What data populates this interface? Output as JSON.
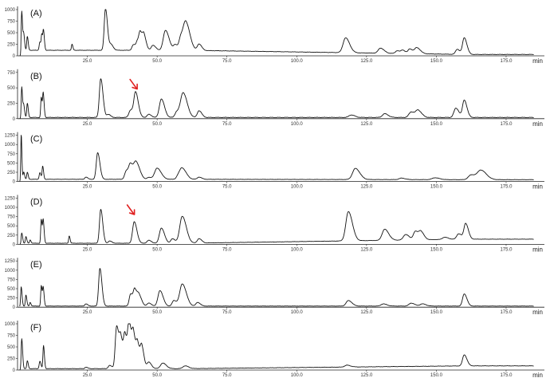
{
  "chart_data": [
    {
      "type": "line",
      "panel_label": "(A)",
      "xlabel": "min",
      "xlim": [
        0,
        185
      ],
      "ylim": [
        0,
        1000
      ],
      "xticks": [
        "25.0",
        "50.0",
        "75.0",
        "100.0",
        "125.0",
        "150.0",
        "175.0"
      ],
      "yticks": [
        "0",
        "250",
        "500",
        "750",
        "1000"
      ],
      "baseline": 120,
      "tail_baseline": 30,
      "peaks": [
        [
          1.5,
          850,
          0.18
        ],
        [
          2.2,
          350,
          0.2
        ],
        [
          3.5,
          300,
          0.2
        ],
        [
          8.0,
          180,
          0.25
        ],
        [
          8.7,
          320,
          0.2
        ],
        [
          9.3,
          400,
          0.2
        ],
        [
          19.5,
          130,
          0.2
        ],
        [
          31.5,
          900,
          0.45
        ],
        [
          33.5,
          120,
          0.5
        ],
        [
          41.5,
          120,
          0.5
        ],
        [
          43.0,
          180,
          0.5
        ],
        [
          44.0,
          330,
          0.5
        ],
        [
          45.3,
          290,
          0.5
        ],
        [
          48.5,
          110,
          0.6
        ],
        [
          53.0,
          430,
          0.8
        ],
        [
          56.5,
          120,
          0.6
        ],
        [
          58.5,
          260,
          0.6
        ],
        [
          60.3,
          590,
          0.9
        ],
        [
          65.0,
          140,
          0.6
        ],
        [
          117.5,
          320,
          0.9
        ],
        [
          130.0,
          110,
          0.8
        ],
        [
          136.0,
          60,
          0.6
        ],
        [
          138.0,
          70,
          0.6
        ],
        [
          140.5,
          100,
          0.6
        ],
        [
          143.0,
          130,
          0.8
        ],
        [
          157.5,
          110,
          0.6
        ],
        [
          160.0,
          360,
          0.6
        ]
      ]
    },
    {
      "type": "line",
      "panel_label": "(B)",
      "xlabel": "min",
      "xlim": [
        0,
        185
      ],
      "ylim": [
        0,
        750
      ],
      "xticks": [
        "25.0",
        "50.0",
        "75.0",
        "100.0",
        "125.0",
        "150.0",
        "175.0"
      ],
      "yticks": [
        "0",
        "250",
        "500",
        "750"
      ],
      "baseline": 20,
      "tail_baseline": 20,
      "arrow_at": [
        42,
        520
      ],
      "peaks": [
        [
          1.5,
          500,
          0.18
        ],
        [
          2.2,
          200,
          0.2
        ],
        [
          3.5,
          230,
          0.2
        ],
        [
          8.5,
          330,
          0.2
        ],
        [
          9.2,
          380,
          0.2
        ],
        [
          29.8,
          630,
          0.5
        ],
        [
          32.5,
          50,
          0.5
        ],
        [
          40.5,
          120,
          0.6
        ],
        [
          42.3,
          400,
          0.6
        ],
        [
          47.0,
          50,
          0.6
        ],
        [
          51.5,
          300,
          0.7
        ],
        [
          57.0,
          90,
          0.6
        ],
        [
          59.3,
          400,
          0.9
        ],
        [
          65.0,
          110,
          0.6
        ],
        [
          119.5,
          40,
          0.8
        ],
        [
          131.5,
          60,
          0.8
        ],
        [
          141.0,
          90,
          0.8
        ],
        [
          143.5,
          110,
          0.8
        ],
        [
          157.0,
          150,
          0.7
        ],
        [
          160.0,
          280,
          0.6
        ]
      ]
    },
    {
      "type": "line",
      "panel_label": "(C)",
      "xlabel": "min",
      "xlim": [
        0,
        185
      ],
      "ylim": [
        0,
        1250
      ],
      "xticks": [
        "25.0",
        "50.0",
        "75.0",
        "100.0",
        "125.0",
        "150.0",
        "175.0"
      ],
      "yticks": [
        "0",
        "250",
        "500",
        "750",
        "1000",
        "1250"
      ],
      "baseline": 60,
      "tail_baseline": 50,
      "peaks": [
        [
          1.3,
          1250,
          0.15
        ],
        [
          2.2,
          200,
          0.2
        ],
        [
          3.5,
          190,
          0.2
        ],
        [
          8.0,
          180,
          0.25
        ],
        [
          9.0,
          350,
          0.2
        ],
        [
          24.5,
          60,
          0.4
        ],
        [
          28.7,
          720,
          0.5
        ],
        [
          39.0,
          230,
          0.6
        ],
        [
          40.5,
          360,
          0.6
        ],
        [
          42.5,
          450,
          0.8
        ],
        [
          47.0,
          50,
          0.6
        ],
        [
          50.0,
          300,
          0.9
        ],
        [
          57.5,
          80,
          0.6
        ],
        [
          59.0,
          290,
          0.9
        ],
        [
          65.0,
          60,
          0.6
        ],
        [
          121.0,
          300,
          1.0
        ],
        [
          137.5,
          40,
          0.8
        ],
        [
          149.5,
          50,
          1.0
        ],
        [
          162.5,
          130,
          1.0
        ],
        [
          166.0,
          250,
          1.2
        ]
      ]
    },
    {
      "type": "line",
      "panel_label": "(D)",
      "xlabel": "min",
      "xlim": [
        0,
        185
      ],
      "ylim": [
        0,
        1250
      ],
      "xticks": [
        "25.0",
        "50.0",
        "75.0",
        "100.0",
        "125.0",
        "150.0",
        "175.0"
      ],
      "yticks": [
        "0",
        "250",
        "500",
        "750",
        "1000",
        "1250"
      ],
      "baseline": 30,
      "tail_baseline": 140,
      "arrow_at": [
        41,
        870
      ],
      "peaks": [
        [
          1.5,
          280,
          0.2
        ],
        [
          3.0,
          180,
          0.2
        ],
        [
          4.5,
          90,
          0.2
        ],
        [
          8.5,
          650,
          0.2
        ],
        [
          9.2,
          600,
          0.2
        ],
        [
          18.5,
          200,
          0.2
        ],
        [
          29.8,
          920,
          0.45
        ],
        [
          33.0,
          60,
          0.5
        ],
        [
          41.8,
          580,
          0.6
        ],
        [
          47.0,
          80,
          0.6
        ],
        [
          51.5,
          410,
          0.7
        ],
        [
          55.5,
          120,
          0.6
        ],
        [
          59.0,
          730,
          0.9
        ],
        [
          65.0,
          120,
          0.6
        ],
        [
          118.5,
          790,
          0.9
        ],
        [
          131.5,
          300,
          0.9
        ],
        [
          139.0,
          150,
          0.8
        ],
        [
          142.5,
          230,
          0.7
        ],
        [
          144.5,
          200,
          0.7
        ],
        [
          153.0,
          60,
          0.8
        ],
        [
          158.0,
          150,
          0.7
        ],
        [
          160.5,
          420,
          0.6
        ]
      ]
    },
    {
      "type": "line",
      "panel_label": "(E)",
      "xlabel": "min",
      "xlim": [
        0,
        185
      ],
      "ylim": [
        0,
        1250
      ],
      "xticks": [
        "25.0",
        "50.0",
        "75.0",
        "100.0",
        "125.0",
        "150.0",
        "175.0"
      ],
      "yticks": [
        "0",
        "250",
        "500",
        "750",
        "1000",
        "1250"
      ],
      "baseline": 30,
      "tail_baseline": 30,
      "peaks": [
        [
          1.3,
          520,
          0.2
        ],
        [
          3.0,
          300,
          0.2
        ],
        [
          4.5,
          100,
          0.2
        ],
        [
          8.5,
          560,
          0.2
        ],
        [
          9.2,
          480,
          0.2
        ],
        [
          24.5,
          60,
          0.4
        ],
        [
          29.5,
          1020,
          0.45
        ],
        [
          40.5,
          330,
          0.5
        ],
        [
          42.0,
          420,
          0.5
        ],
        [
          43.5,
          280,
          0.6
        ],
        [
          47.0,
          80,
          0.6
        ],
        [
          51.0,
          420,
          0.7
        ],
        [
          56.0,
          150,
          0.6
        ],
        [
          59.0,
          600,
          0.9
        ],
        [
          64.5,
          100,
          0.6
        ],
        [
          118.5,
          150,
          0.8
        ],
        [
          131.0,
          60,
          0.8
        ],
        [
          141.0,
          80,
          0.8
        ],
        [
          145.0,
          60,
          0.8
        ],
        [
          160.0,
          330,
          0.6
        ]
      ]
    },
    {
      "type": "line",
      "panel_label": "(F)",
      "xlabel": "min",
      "xlim": [
        0,
        185
      ],
      "ylim": [
        0,
        1000
      ],
      "xticks": [
        "25.0",
        "50.0",
        "75.0",
        "100.0",
        "125.0",
        "150.0",
        "175.0"
      ],
      "yticks": [
        "0",
        "250",
        "500",
        "750",
        "1000"
      ],
      "baseline": 30,
      "tail_baseline": 90,
      "peaks": [
        [
          1.5,
          650,
          0.2
        ],
        [
          3.5,
          170,
          0.2
        ],
        [
          8.0,
          160,
          0.25
        ],
        [
          9.3,
          500,
          0.2
        ],
        [
          24.5,
          30,
          0.4
        ],
        [
          33.0,
          70,
          0.5
        ],
        [
          35.5,
          920,
          0.5
        ],
        [
          37.0,
          600,
          0.5
        ],
        [
          38.5,
          680,
          0.5
        ],
        [
          40.0,
          950,
          0.5
        ],
        [
          41.5,
          700,
          0.5
        ],
        [
          43.0,
          500,
          0.5
        ],
        [
          44.5,
          450,
          0.5
        ],
        [
          47.0,
          140,
          0.6
        ],
        [
          52.0,
          120,
          0.8
        ],
        [
          60.0,
          60,
          0.8
        ],
        [
          118.0,
          40,
          0.8
        ],
        [
          160.0,
          240,
          0.6
        ]
      ]
    }
  ]
}
